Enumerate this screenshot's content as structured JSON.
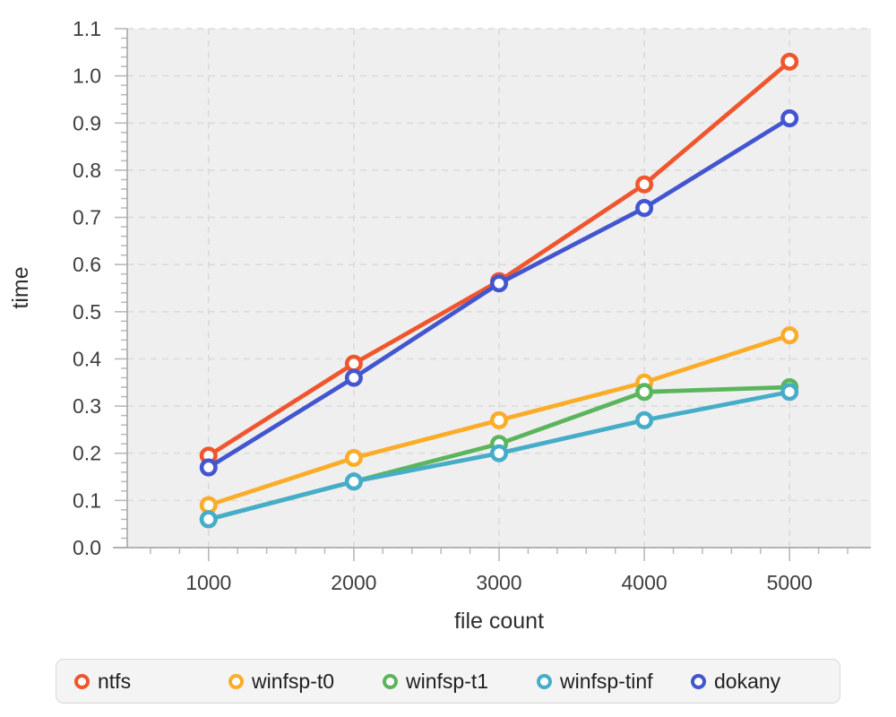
{
  "chart_data": {
    "type": "line",
    "xlabel": "file count",
    "ylabel": "time",
    "x": [
      1000,
      2000,
      3000,
      4000,
      5000
    ],
    "x_ticks": [
      "1000",
      "2000",
      "3000",
      "4000",
      "5000"
    ],
    "y_ticks": [
      "0.0",
      "0.1",
      "0.2",
      "0.3",
      "0.4",
      "0.5",
      "0.6",
      "0.7",
      "0.8",
      "0.9",
      "1.0",
      "1.1"
    ],
    "xlim": [
      440,
      5560
    ],
    "ylim": [
      0,
      1.1
    ],
    "x_minor_step": 200,
    "y_minor_step": 0.02,
    "grid": "dashed",
    "legend_position": "bottom",
    "series": [
      {
        "name": "ntfs",
        "color": "#F0562E",
        "values": [
          0.195,
          0.39,
          0.565,
          0.77,
          1.03
        ]
      },
      {
        "name": "winfsp-t0",
        "color": "#FBAD29",
        "values": [
          0.09,
          0.19,
          0.27,
          0.35,
          0.45
        ]
      },
      {
        "name": "winfsp-t1",
        "color": "#5BB55D",
        "values": [
          0.06,
          0.14,
          0.22,
          0.33,
          0.34
        ]
      },
      {
        "name": "winfsp-tinf",
        "color": "#46ADC8",
        "values": [
          0.06,
          0.14,
          0.2,
          0.27,
          0.33
        ]
      },
      {
        "name": "dokany",
        "color": "#4355CF",
        "values": [
          0.17,
          0.36,
          0.56,
          0.72,
          0.91
        ]
      }
    ]
  },
  "styles": {
    "plot_bg": "#EFEFF0",
    "grid_color": "#DBDBDB",
    "axis_color": "#ABABAB",
    "tick_color": "#B9B9B9",
    "tick_label_color": "#3E3E3E",
    "axis_title_color": "#2E2E2E",
    "legend_bg": "#F4F4F4",
    "legend_border": "#D7D7D7",
    "legend_text_color": "#1F1F1F",
    "marker_fill": "#FFFFFF"
  }
}
